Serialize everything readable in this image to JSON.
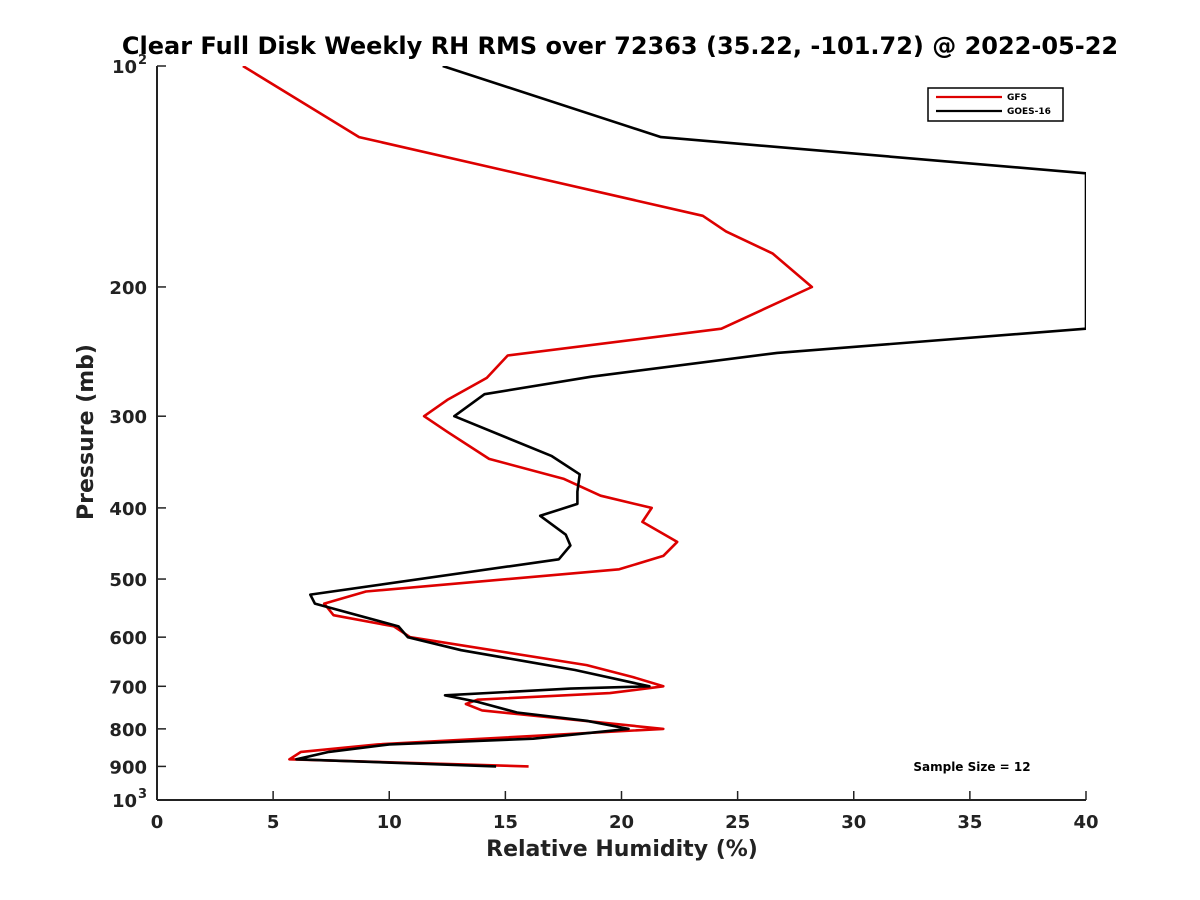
{
  "chart_data": {
    "type": "line",
    "title": "Clear Full Disk Weekly RH RMS over 72363 (35.22, -101.72) @ 2022-05-22",
    "xlabel": "Relative Humidity (%)",
    "ylabel": "Pressure (mb)",
    "xlim": [
      0,
      40
    ],
    "ylim": [
      100,
      1000
    ],
    "y_scale": "log",
    "y_reversed": true,
    "x_ticks": [
      "0",
      "5",
      "10",
      "15",
      "20",
      "25",
      "30",
      "35",
      "40"
    ],
    "y_ticks": [
      {
        "value": 100,
        "label": "10",
        "sup": "2"
      },
      {
        "value": 200,
        "label": "200"
      },
      {
        "value": 300,
        "label": "300"
      },
      {
        "value": 400,
        "label": "400"
      },
      {
        "value": 500,
        "label": "500"
      },
      {
        "value": 600,
        "label": "600"
      },
      {
        "value": 700,
        "label": "700"
      },
      {
        "value": 800,
        "label": "800"
      },
      {
        "value": 900,
        "label": "900"
      },
      {
        "value": 1000,
        "label": "10",
        "sup": "3"
      }
    ],
    "legend_position": "top-right",
    "annotation": "Sample Size = 12",
    "series": [
      {
        "name": "GFS",
        "color": "#dd0000",
        "points": [
          [
            3.7,
            100
          ],
          [
            8.7,
            125
          ],
          [
            23.5,
            160
          ],
          [
            24.5,
            168
          ],
          [
            26.5,
            180
          ],
          [
            28.2,
            200
          ],
          [
            24.3,
            228
          ],
          [
            15.1,
            248
          ],
          [
            14.2,
            266
          ],
          [
            12.5,
            285
          ],
          [
            11.5,
            300
          ],
          [
            12.5,
            315
          ],
          [
            14.3,
            343
          ],
          [
            17.5,
            365
          ],
          [
            19.1,
            385
          ],
          [
            21.3,
            400
          ],
          [
            20.9,
            418
          ],
          [
            22.4,
            445
          ],
          [
            21.8,
            465
          ],
          [
            19.9,
            485
          ],
          [
            9.0,
            520
          ],
          [
            7.2,
            540
          ],
          [
            7.6,
            560
          ],
          [
            10.2,
            580
          ],
          [
            10.9,
            600
          ],
          [
            18.5,
            655
          ],
          [
            20.5,
            680
          ],
          [
            21.8,
            700
          ],
          [
            19.5,
            715
          ],
          [
            13.8,
            730
          ],
          [
            13.3,
            740
          ],
          [
            14.0,
            755
          ],
          [
            21.8,
            800
          ],
          [
            9.5,
            840
          ],
          [
            6.2,
            860
          ],
          [
            5.7,
            880
          ],
          [
            16.0,
            900
          ]
        ]
      },
      {
        "name": "GOES-16",
        "color": "#000000",
        "points": [
          [
            12.3,
            100
          ],
          [
            21.7,
            125
          ],
          [
            40.0,
            140
          ],
          [
            40.0,
            228
          ],
          [
            26.7,
            246
          ],
          [
            18.7,
            265
          ],
          [
            14.1,
            280
          ],
          [
            12.8,
            300
          ],
          [
            17.0,
            340
          ],
          [
            18.2,
            360
          ],
          [
            18.1,
            380
          ],
          [
            18.1,
            395
          ],
          [
            16.5,
            410
          ],
          [
            17.6,
            435
          ],
          [
            17.8,
            450
          ],
          [
            17.3,
            470
          ],
          [
            6.6,
            525
          ],
          [
            6.8,
            540
          ],
          [
            10.4,
            580
          ],
          [
            10.8,
            600
          ],
          [
            13.1,
            625
          ],
          [
            16.2,
            650
          ],
          [
            18.0,
            665
          ],
          [
            21.2,
            700
          ],
          [
            17.8,
            705
          ],
          [
            12.4,
            720
          ],
          [
            13.8,
            735
          ],
          [
            15.5,
            760
          ],
          [
            18.5,
            780
          ],
          [
            20.3,
            800
          ],
          [
            16.2,
            825
          ],
          [
            10.0,
            840
          ],
          [
            7.4,
            860
          ],
          [
            6.0,
            880
          ],
          [
            14.6,
            900
          ]
        ]
      }
    ]
  }
}
